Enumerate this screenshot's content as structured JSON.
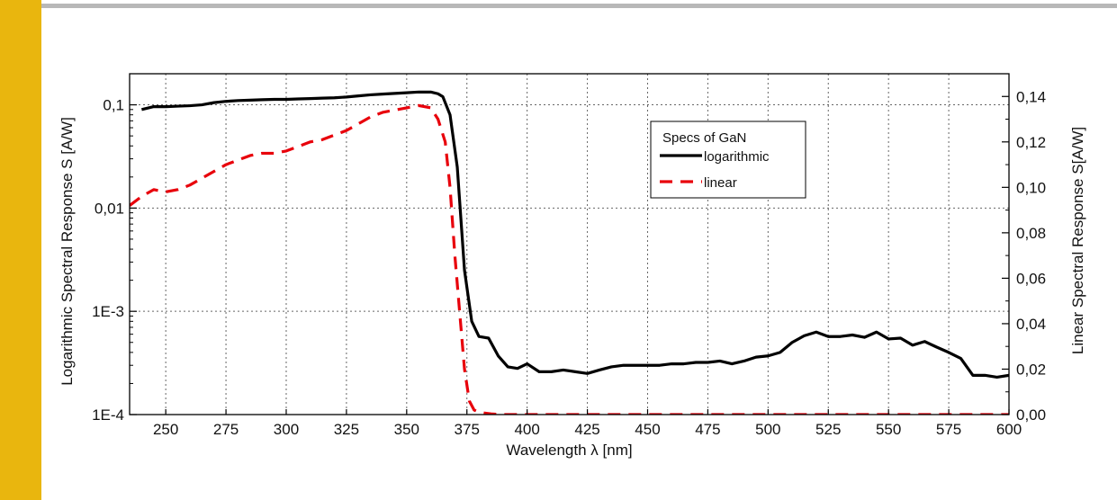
{
  "theme": {
    "accent_band": "#E9B60E",
    "top_rule": "#B8B8B8",
    "grid": "#666666",
    "series_log_color": "#000000",
    "series_lin_color": "#E8000B"
  },
  "chart_data": {
    "type": "line",
    "grid": true,
    "legend_placement": "upper-right-inside",
    "legend_title": "Specs of GaN",
    "xlabel": "Wavelength λ [nm]",
    "ylabel_left": "Logarithmic Spectral Response S [A/W]",
    "ylabel_right": "Linear Spectral Response S[A/W]",
    "xlim": [
      235,
      600
    ],
    "ylim_left": [
      0.0001,
      0.2
    ],
    "yscale_left": "log",
    "ylim_right": [
      0,
      0.15
    ],
    "x_ticks": [
      "250",
      "275",
      "300",
      "325",
      "350",
      "375",
      "400",
      "425",
      "450",
      "475",
      "500",
      "525",
      "550",
      "575",
      "600"
    ],
    "y_left_ticks": [
      {
        "value": 0.1,
        "label": "0,1"
      },
      {
        "value": 0.01,
        "label": "0,01"
      },
      {
        "value": 0.001,
        "label": "1E-3"
      },
      {
        "value": 0.0001,
        "label": "1E-4"
      }
    ],
    "y_right_ticks": [
      "0,00",
      "0,02",
      "0,04",
      "0,06",
      "0,08",
      "0,10",
      "0,12",
      "0,14"
    ],
    "series": [
      {
        "name": "logarithmic",
        "axis": "left",
        "style": "solid",
        "x": [
          240,
          245,
          250,
          255,
          260,
          265,
          270,
          275,
          280,
          285,
          290,
          295,
          300,
          305,
          310,
          315,
          320,
          325,
          330,
          335,
          340,
          345,
          350,
          355,
          360,
          363,
          365,
          368,
          371,
          374,
          377,
          380,
          384,
          388,
          392,
          396,
          400,
          405,
          410,
          415,
          420,
          425,
          430,
          435,
          440,
          445,
          450,
          455,
          460,
          465,
          470,
          475,
          480,
          485,
          490,
          495,
          500,
          505,
          510,
          515,
          520,
          525,
          530,
          535,
          540,
          545,
          550,
          555,
          560,
          565,
          570,
          575,
          580,
          585,
          590,
          595,
          600
        ],
        "y": [
          0.09,
          0.096,
          0.096,
          0.097,
          0.098,
          0.1,
          0.105,
          0.108,
          0.11,
          0.111,
          0.112,
          0.113,
          0.113,
          0.114,
          0.115,
          0.116,
          0.117,
          0.119,
          0.122,
          0.125,
          0.127,
          0.129,
          0.131,
          0.133,
          0.133,
          0.128,
          0.12,
          0.08,
          0.025,
          0.0025,
          0.0008,
          0.00057,
          0.00055,
          0.00037,
          0.00029,
          0.00028,
          0.00031,
          0.00026,
          0.00026,
          0.00027,
          0.00026,
          0.00025,
          0.00027,
          0.00029,
          0.0003,
          0.0003,
          0.0003,
          0.0003,
          0.00031,
          0.00031,
          0.00032,
          0.00032,
          0.00033,
          0.00031,
          0.00033,
          0.00036,
          0.00037,
          0.0004,
          0.0005,
          0.00058,
          0.00063,
          0.00057,
          0.00057,
          0.00059,
          0.00056,
          0.00063,
          0.00054,
          0.00055,
          0.00047,
          0.00051,
          0.00045,
          0.0004,
          0.00035,
          0.00024,
          0.00024,
          0.00023,
          0.00024
        ]
      },
      {
        "name": "linear",
        "axis": "right",
        "style": "dashed",
        "x": [
          235,
          240,
          245,
          250,
          255,
          260,
          265,
          270,
          275,
          280,
          285,
          290,
          295,
          300,
          305,
          310,
          315,
          320,
          325,
          330,
          335,
          340,
          345,
          350,
          355,
          360,
          363,
          366,
          368,
          370,
          372,
          374,
          376,
          378,
          380,
          385,
          390,
          400,
          600
        ],
        "y": [
          0.092,
          0.096,
          0.099,
          0.098,
          0.099,
          0.101,
          0.104,
          0.107,
          0.11,
          0.112,
          0.114,
          0.115,
          0.115,
          0.116,
          0.118,
          0.12,
          0.121,
          0.123,
          0.125,
          0.128,
          0.131,
          0.133,
          0.134,
          0.135,
          0.136,
          0.135,
          0.13,
          0.12,
          0.1,
          0.07,
          0.045,
          0.02,
          0.006,
          0.002,
          0.001,
          0.0003,
          0.0,
          0.0,
          0.0
        ]
      }
    ]
  }
}
